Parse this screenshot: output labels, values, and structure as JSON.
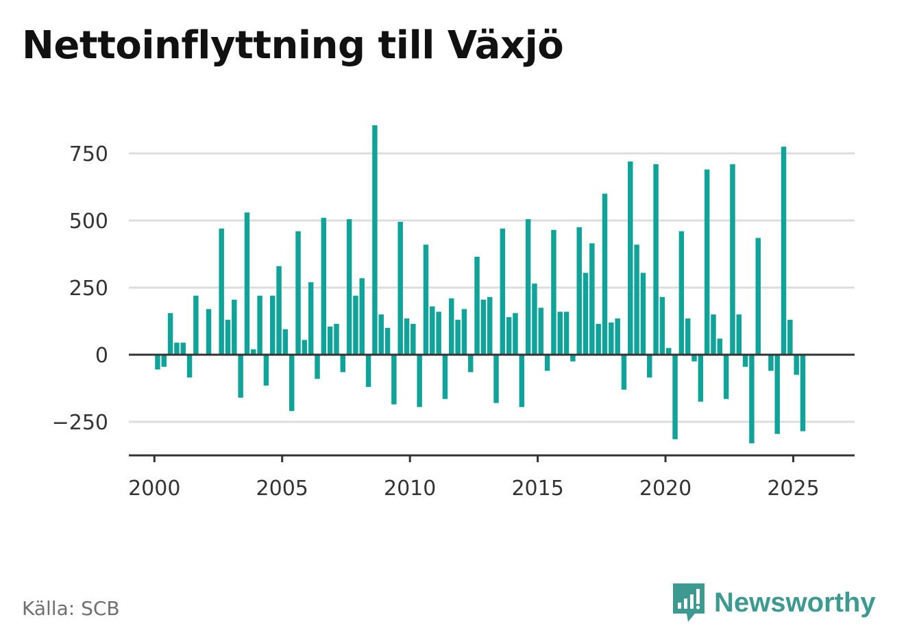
{
  "title": "Nettoinflyttning till Växjö",
  "source": "Källa: SCB",
  "brand": {
    "name": "Newsworthy",
    "icon": "newsworthy-logo-icon",
    "color": "#3d9a90"
  },
  "colors": {
    "bar": "#0fa39a",
    "grid": "#dddddd",
    "axis": "#333333"
  },
  "chart_data": {
    "type": "bar",
    "title": "Nettoinflyttning till Växjö",
    "xlabel": "",
    "ylabel": "",
    "ylim": [
      -375,
      875
    ],
    "xlim": [
      1999.0,
      2027.4
    ],
    "grid": true,
    "yticks": [
      750,
      500,
      250,
      0,
      -250
    ],
    "ytick_labels": [
      "750",
      "500",
      "250",
      "0",
      "−250"
    ],
    "xticks": [
      2000,
      2005,
      2010,
      2015,
      2020,
      2025
    ],
    "xtick_labels": [
      "2000",
      "2005",
      "2010",
      "2015",
      "2020",
      "2025"
    ],
    "x_start": "2000-01",
    "period": "quarter",
    "values": [
      -55,
      -45,
      155,
      45,
      45,
      -85,
      220,
      0,
      170,
      0,
      470,
      130,
      205,
      -160,
      530,
      20,
      220,
      -115,
      220,
      330,
      95,
      -210,
      460,
      55,
      270,
      -90,
      510,
      105,
      115,
      -65,
      505,
      220,
      285,
      -120,
      855,
      150,
      100,
      -185,
      495,
      135,
      115,
      -195,
      410,
      180,
      160,
      -165,
      210,
      130,
      170,
      -65,
      365,
      205,
      215,
      -180,
      470,
      140,
      155,
      -195,
      505,
      265,
      175,
      -60,
      465,
      160,
      160,
      -25,
      475,
      305,
      415,
      115,
      600,
      120,
      135,
      -130,
      720,
      410,
      305,
      -85,
      710,
      215,
      25,
      -315,
      460,
      135,
      -25,
      -175,
      690,
      150,
      60,
      -165,
      710,
      150,
      -45,
      -330,
      435,
      0,
      -60,
      -295,
      775,
      130,
      -75,
      -285
    ]
  }
}
